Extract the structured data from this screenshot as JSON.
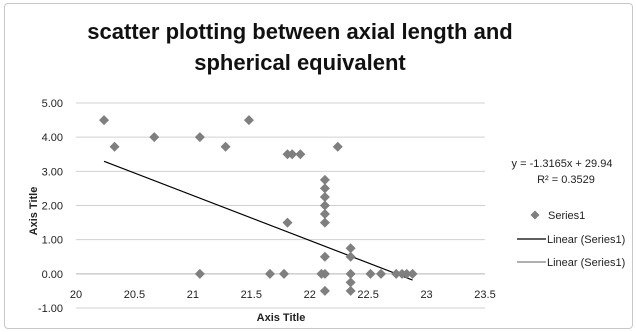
{
  "chart_data": {
    "type": "scatter",
    "title_lines": [
      "scatter plotting between axial length and",
      "spherical equivalent"
    ],
    "xlabel": "Axis Title",
    "ylabel": "Axis Title",
    "xlim": [
      20,
      23.5
    ],
    "ylim": [
      -1,
      5
    ],
    "x_ticks": [
      "20",
      "20.5",
      "21",
      "21.5",
      "22",
      "22.5",
      "23",
      "23.5"
    ],
    "y_ticks": [
      "5.00",
      "4.00",
      "3.00",
      "2.00",
      "1.00",
      "0.00",
      "-1.00"
    ],
    "grid": true,
    "legend_position": "right",
    "series": [
      {
        "name": "Series1",
        "marker": "diamond",
        "color": "#7f7f7f",
        "points": [
          [
            20.24,
            4.5
          ],
          [
            20.33,
            3.72
          ],
          [
            20.67,
            4.0
          ],
          [
            21.06,
            4.0
          ],
          [
            21.06,
            0.0
          ],
          [
            21.28,
            3.72
          ],
          [
            21.48,
            4.5
          ],
          [
            21.66,
            0.0
          ],
          [
            21.78,
            0.0
          ],
          [
            21.81,
            3.5
          ],
          [
            21.81,
            1.5
          ],
          [
            21.85,
            3.5
          ],
          [
            21.92,
            3.5
          ],
          [
            22.1,
            0.0
          ],
          [
            22.13,
            0.0
          ],
          [
            22.13,
            2.75
          ],
          [
            22.13,
            2.5
          ],
          [
            22.13,
            2.25
          ],
          [
            22.13,
            2.0
          ],
          [
            22.13,
            1.75
          ],
          [
            22.13,
            1.5
          ],
          [
            22.13,
            0.5
          ],
          [
            22.13,
            -0.5
          ],
          [
            22.24,
            3.72
          ],
          [
            22.35,
            0.75
          ],
          [
            22.35,
            0.5
          ],
          [
            22.35,
            0.0
          ],
          [
            22.35,
            -0.25
          ],
          [
            22.35,
            -0.5
          ],
          [
            22.52,
            0.0
          ],
          [
            22.61,
            0.0
          ],
          [
            22.74,
            0.0
          ],
          [
            22.79,
            0.0
          ],
          [
            22.83,
            0.0
          ],
          [
            22.88,
            0.0
          ]
        ]
      }
    ],
    "trendline": {
      "name": "Linear (Series1)",
      "slope": -1.3165,
      "intercept": 29.94,
      "x_range": [
        20.24,
        22.88
      ],
      "color": "#000000"
    },
    "equation_text": "y = -1.3165x + 29.94",
    "r2_text": "R² = 0.3529",
    "legend": [
      {
        "label": "Series1",
        "kind": "marker",
        "color": "#7f7f7f"
      },
      {
        "label": "Linear (Series1)",
        "kind": "line",
        "color": "#000000"
      },
      {
        "label": "Linear (Series1)",
        "kind": "line",
        "color": "#7f7f7f"
      }
    ]
  }
}
